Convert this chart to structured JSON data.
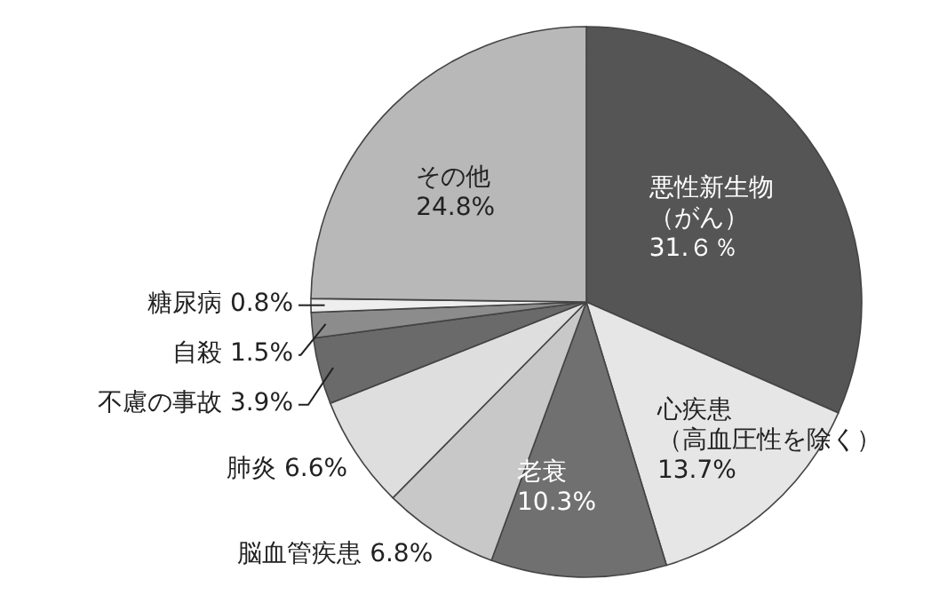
{
  "chart_data": {
    "type": "pie",
    "legend": false,
    "categories": [
      "悪性新生物（がん）",
      "心疾患（高血圧性を除く）",
      "老衰",
      "脳血管疾患",
      "肺炎",
      "不慮の事故",
      "自殺",
      "糖尿病",
      "その他"
    ],
    "values": [
      31.6,
      13.7,
      10.3,
      6.8,
      6.6,
      3.9,
      1.5,
      0.8,
      24.8
    ],
    "value_labels": [
      "31.６％",
      "13.7%",
      "10.3%",
      "6.8%",
      "6.6%",
      "3.9%",
      "1.5%",
      "0.8%",
      "24.8%"
    ],
    "colors": [
      "#555555",
      "#e6e6e6",
      "#707070",
      "#c8c8c8",
      "#dedede",
      "#6a6a6a",
      "#8c8c8c",
      "#eeeeee",
      "#b8b8b8"
    ]
  }
}
